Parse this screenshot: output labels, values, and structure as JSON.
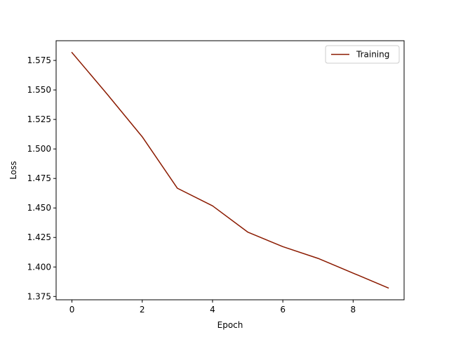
{
  "chart_data": {
    "type": "line",
    "title": "",
    "xlabel": "Epoch",
    "ylabel": "Loss",
    "xlim": [
      -0.45,
      9.45
    ],
    "ylim": [
      1.3722,
      1.5917
    ],
    "xticks": [
      0,
      2,
      4,
      6,
      8
    ],
    "xtick_labels": [
      "0",
      "2",
      "4",
      "6",
      "8"
    ],
    "yticks": [
      1.375,
      1.4,
      1.425,
      1.45,
      1.475,
      1.5,
      1.525,
      1.55,
      1.575
    ],
    "ytick_labels": [
      "1.375",
      "1.400",
      "1.425",
      "1.450",
      "1.475",
      "1.500",
      "1.525",
      "1.550",
      "1.575"
    ],
    "grid": false,
    "legend_position": "top-right",
    "x": [
      0,
      1,
      2,
      3,
      4,
      5,
      6,
      7,
      8,
      9
    ],
    "series": [
      {
        "name": "Training",
        "color": "#8b1a00",
        "values": [
          1.5817,
          1.5465,
          1.5103,
          1.4667,
          1.4518,
          1.4296,
          1.4172,
          1.4073,
          1.3948,
          1.3822
        ]
      }
    ]
  }
}
